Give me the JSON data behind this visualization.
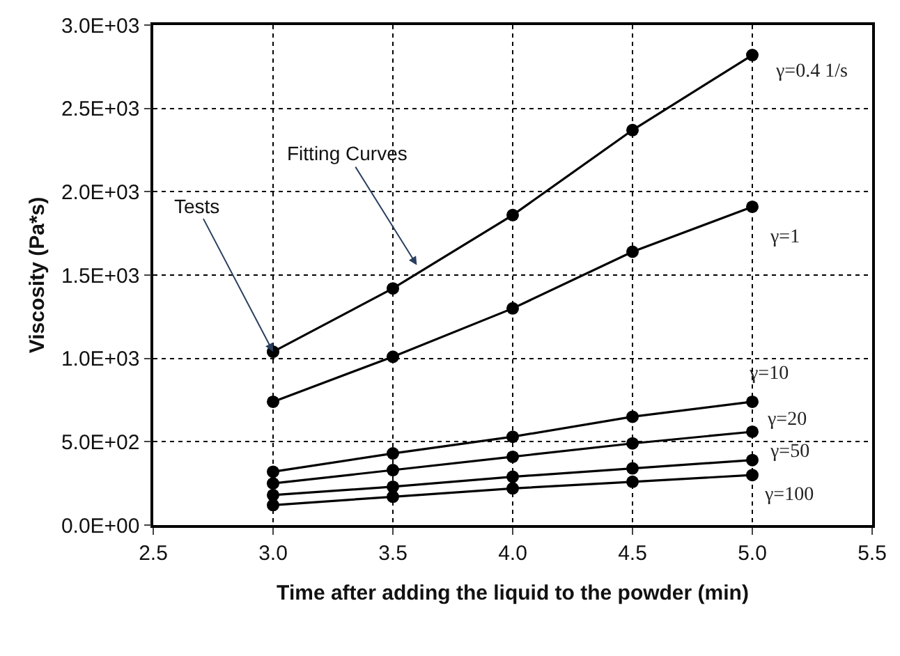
{
  "chart_data": {
    "type": "line",
    "xlabel": "Time after adding the liquid to the powder (min)",
    "ylabel": "Viscosity (Pa*s)",
    "x": [
      3.0,
      3.5,
      4.0,
      4.5,
      5.0
    ],
    "series": [
      {
        "name": "γ=0.4 1/s",
        "color": "#000000",
        "values": [
          1040,
          1420,
          1860,
          2370,
          2820
        ]
      },
      {
        "name": "γ=1",
        "color": "#000000",
        "values": [
          740,
          1010,
          1300,
          1640,
          1910
        ]
      },
      {
        "name": "γ=10",
        "color": "#000000",
        "values": [
          320,
          430,
          530,
          650,
          740
        ]
      },
      {
        "name": "γ=20",
        "color": "#000000",
        "values": [
          250,
          330,
          410,
          490,
          560
        ]
      },
      {
        "name": "γ=50",
        "color": "#000000",
        "values": [
          180,
          230,
          290,
          340,
          390
        ]
      },
      {
        "name": "γ=100",
        "color": "#000000",
        "values": [
          120,
          170,
          220,
          260,
          300
        ]
      }
    ],
    "annotations": [
      {
        "text": "Tests",
        "x": 3.0,
        "y": 1040
      },
      {
        "text": "Fitting Curves",
        "x": 3.6,
        "y": 1560
      }
    ],
    "xlim": [
      2.5,
      5.5
    ],
    "ylim": [
      0,
      3000
    ],
    "xticks": [
      2.5,
      {
        "value": 3,
        "label": "3.0"
      },
      3.5,
      {
        "value": 4,
        "label": "4.0"
      },
      4.5,
      {
        "value": 5,
        "label": "5.0"
      },
      5.5
    ],
    "yticks": [
      {
        "value": 0,
        "label": "0.0E+00"
      },
      {
        "value": 500,
        "label": "5.0E+02"
      },
      {
        "value": 1000,
        "label": "1.0E+03"
      },
      {
        "value": 1500,
        "label": "1.5E+03"
      },
      {
        "value": 2000,
        "label": "2.0E+03"
      },
      {
        "value": 2500,
        "label": "2.5E+03"
      },
      {
        "value": 3000,
        "label": "3.0E+03"
      }
    ],
    "grid": true,
    "legend": false,
    "marker": "circle",
    "line_style": "solid"
  }
}
